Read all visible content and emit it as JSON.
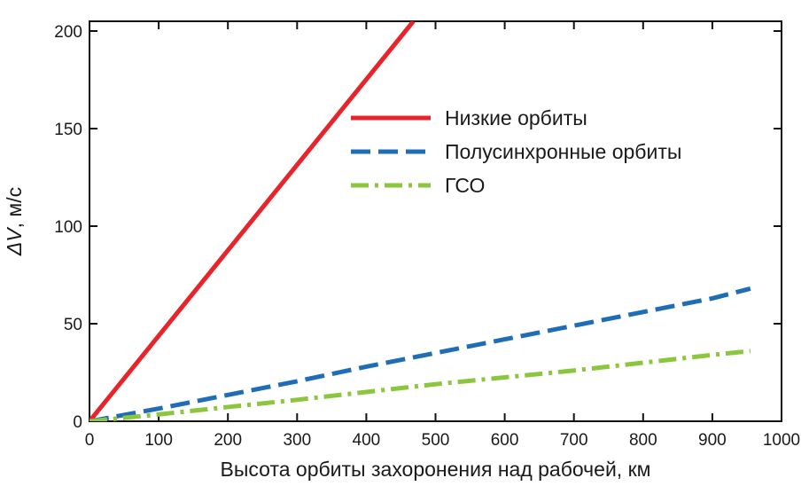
{
  "chart_data": {
    "type": "line",
    "xlabel": "Высота орбиты захоронения над рабочей, км",
    "ylabel_prefix": "ΔV",
    "ylabel_suffix": ", м/с",
    "xlim": [
      0,
      1000
    ],
    "ylim": [
      0,
      205
    ],
    "x_ticks": [
      0,
      100,
      200,
      300,
      400,
      500,
      600,
      700,
      800,
      900,
      1000
    ],
    "x_tick_labels": [
      "0",
      "100",
      "200",
      "300",
      "400",
      "500",
      "600",
      "700",
      "800",
      "900",
      "1000"
    ],
    "y_ticks": [
      0,
      50,
      100,
      150,
      200
    ],
    "y_tick_labels": [
      "0",
      "50",
      "100",
      "150",
      "200"
    ],
    "grid": false,
    "legend_position": "center-top",
    "series": [
      {
        "name": "Низкие орбиты",
        "color": "#e8232a",
        "style": "solid",
        "x": [
          0,
          468
        ],
        "y": [
          0,
          205
        ]
      },
      {
        "name": "Полусинхронные орбиты",
        "color": "#1f6db5",
        "style": "dashed",
        "x": [
          0,
          100,
          200,
          300,
          400,
          500,
          600,
          700,
          800,
          900,
          955
        ],
        "y": [
          0,
          6.5,
          13.5,
          20.5,
          28,
          35,
          42,
          49,
          56,
          63,
          68
        ]
      },
      {
        "name": "ГСО",
        "color": "#8cc63f",
        "style": "dashdot",
        "x": [
          0,
          100,
          200,
          300,
          400,
          500,
          600,
          700,
          800,
          900,
          955
        ],
        "y": [
          0,
          3.5,
          7.3,
          11,
          15,
          19,
          22.5,
          26,
          30,
          34,
          36
        ]
      }
    ]
  }
}
